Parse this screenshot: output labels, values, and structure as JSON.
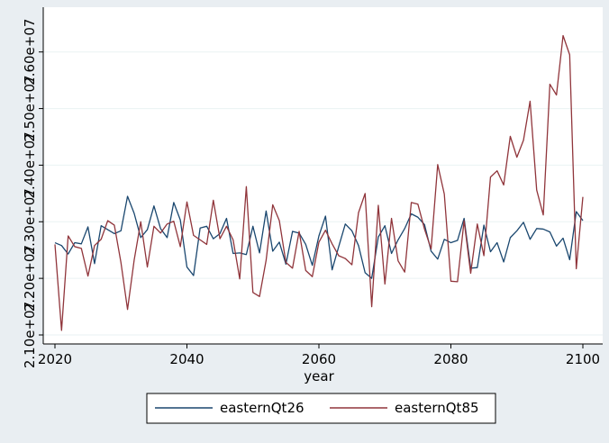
{
  "chart_data": {
    "type": "line",
    "title": "",
    "xlabel": "year",
    "ylabel": "",
    "xlim": [
      2020,
      2100
    ],
    "ylim": [
      21000000,
      26600000
    ],
    "x_ticks": [
      2020,
      2040,
      2060,
      2080,
      2100
    ],
    "x_tick_labels": [
      "2020",
      "2040",
      "2060",
      "2080",
      "2100"
    ],
    "y_ticks": [
      21000000,
      22000000,
      23000000,
      24000000,
      25000000,
      26000000
    ],
    "y_tick_labels": [
      "2.10e+07",
      "2.20e+07",
      "2.30e+07",
      "2.40e+07",
      "2.50e+07",
      "2.60e+07"
    ],
    "grid": "horizontal",
    "legend_position": "bottom",
    "x_start": 2020,
    "series": [
      {
        "name": "easternQt26",
        "color": "#1a476f",
        "values": [
          22630000,
          22580000,
          22430000,
          22630000,
          22610000,
          22910000,
          22260000,
          22930000,
          22860000,
          22790000,
          22840000,
          23450000,
          23150000,
          22720000,
          22860000,
          23280000,
          22880000,
          22720000,
          23340000,
          23030000,
          22200000,
          22050000,
          22890000,
          22920000,
          22700000,
          22790000,
          23060000,
          22440000,
          22450000,
          22420000,
          22920000,
          22450000,
          23190000,
          22480000,
          22640000,
          22250000,
          22830000,
          22800000,
          22600000,
          22230000,
          22750000,
          23100000,
          22150000,
          22560000,
          22960000,
          22840000,
          22580000,
          22100000,
          22000000,
          22730000,
          22930000,
          22440000,
          22680000,
          22880000,
          23140000,
          23080000,
          22950000,
          22480000,
          22340000,
          22690000,
          22630000,
          22670000,
          23060000,
          22180000,
          22190000,
          22940000,
          22470000,
          22630000,
          22290000,
          22720000,
          22840000,
          22990000,
          22690000,
          22880000,
          22870000,
          22820000,
          22570000,
          22710000,
          22330000,
          23180000,
          23020000
        ]
      },
      {
        "name": "easternQt85",
        "color": "#90353b",
        "values": [
          22600000,
          21080000,
          22750000,
          22560000,
          22530000,
          22040000,
          22580000,
          22690000,
          23020000,
          22940000,
          22280000,
          21450000,
          22320000,
          23000000,
          22200000,
          22920000,
          22800000,
          22960000,
          23010000,
          22560000,
          23350000,
          22760000,
          22680000,
          22600000,
          23380000,
          22700000,
          22920000,
          22680000,
          21990000,
          23620000,
          21750000,
          21680000,
          22320000,
          23300000,
          23020000,
          22280000,
          22180000,
          22830000,
          22140000,
          22030000,
          22640000,
          22850000,
          22610000,
          22400000,
          22350000,
          22240000,
          23160000,
          23500000,
          21500000,
          23290000,
          21900000,
          23060000,
          22310000,
          22110000,
          23340000,
          23310000,
          22870000,
          22520000,
          24010000,
          23490000,
          21950000,
          21940000,
          23020000,
          22090000,
          22960000,
          22400000,
          23790000,
          23900000,
          23650000,
          24510000,
          24140000,
          24440000,
          25130000,
          23560000,
          23120000,
          25430000,
          25240000,
          26290000,
          25950000,
          22170000,
          23440000
        ]
      }
    ]
  },
  "legend": {
    "items": [
      "easternQt26",
      "easternQt85"
    ]
  }
}
